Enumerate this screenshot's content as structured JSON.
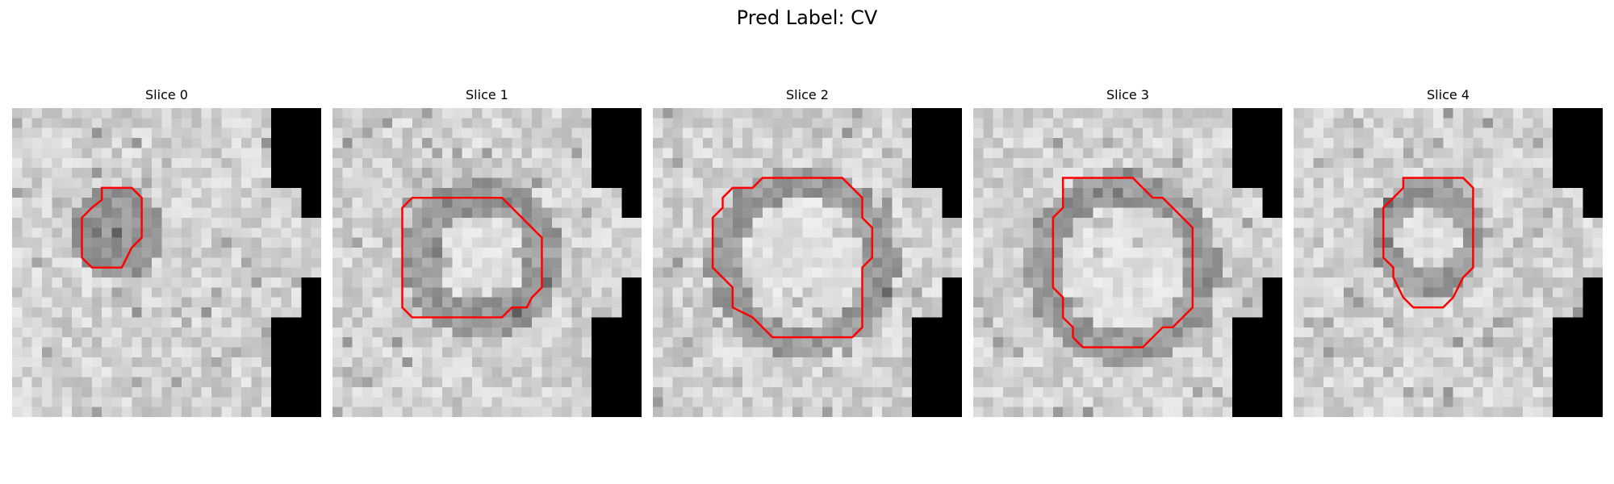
{
  "figure": {
    "title": "Pred Label: CV"
  },
  "colors": {
    "background": "#ffffff",
    "contour": "#ff0000",
    "mask": "#000000"
  },
  "slices": [
    {
      "title": "Slice 0"
    },
    {
      "title": "Slice 1"
    },
    {
      "title": "Slice 2"
    },
    {
      "title": "Slice 3"
    },
    {
      "title": "Slice 4"
    }
  ]
}
